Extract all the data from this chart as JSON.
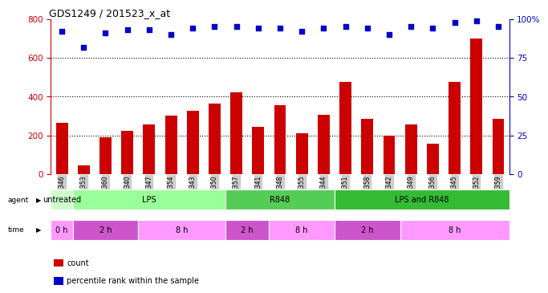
{
  "title": "GDS1249 / 201523_x_at",
  "samples": [
    "GSM52346",
    "GSM52353",
    "GSM52360",
    "GSM52340",
    "GSM52347",
    "GSM52354",
    "GSM52343",
    "GSM52350",
    "GSM52357",
    "GSM52341",
    "GSM52348",
    "GSM52355",
    "GSM52344",
    "GSM52351",
    "GSM52358",
    "GSM52342",
    "GSM52349",
    "GSM52356",
    "GSM52345",
    "GSM52352",
    "GSM52359"
  ],
  "counts": [
    265,
    45,
    190,
    225,
    255,
    300,
    325,
    365,
    420,
    245,
    355,
    210,
    305,
    475,
    285,
    200,
    255,
    155,
    475,
    700,
    285
  ],
  "percentile_ranks": [
    92,
    82,
    91,
    93,
    93,
    90,
    94,
    95,
    95,
    94,
    94,
    92,
    94,
    95,
    94,
    90,
    95,
    94,
    98,
    99,
    95
  ],
  "agent_groups": [
    {
      "label": "untreated",
      "start": 0,
      "end": 1,
      "color": "#ccffcc"
    },
    {
      "label": "LPS",
      "start": 1,
      "end": 8,
      "color": "#99ff99"
    },
    {
      "label": "R848",
      "start": 8,
      "end": 13,
      "color": "#55cc55"
    },
    {
      "label": "LPS and R848",
      "start": 13,
      "end": 21,
      "color": "#33bb33"
    }
  ],
  "time_groups": [
    {
      "label": "0 h",
      "start": 0,
      "end": 1,
      "color": "#ff99ff"
    },
    {
      "label": "2 h",
      "start": 1,
      "end": 4,
      "color": "#cc55cc"
    },
    {
      "label": "8 h",
      "start": 4,
      "end": 8,
      "color": "#ff99ff"
    },
    {
      "label": "2 h",
      "start": 8,
      "end": 10,
      "color": "#cc55cc"
    },
    {
      "label": "8 h",
      "start": 10,
      "end": 13,
      "color": "#ff99ff"
    },
    {
      "label": "2 h",
      "start": 13,
      "end": 16,
      "color": "#cc55cc"
    },
    {
      "label": "8 h",
      "start": 16,
      "end": 21,
      "color": "#ff99ff"
    }
  ],
  "ylim_left": [
    0,
    800
  ],
  "ylim_right": [
    0,
    100
  ],
  "yticks_left": [
    0,
    200,
    400,
    600,
    800
  ],
  "yticks_right": [
    0,
    25,
    50,
    75,
    100
  ],
  "bar_color": "#cc0000",
  "dot_color": "#0000cc",
  "axis_color_left": "#cc0000",
  "axis_color_right": "#0000cc",
  "tick_bg_color": "#cccccc",
  "legend_count_color": "#cc0000",
  "legend_pct_color": "#0000cc"
}
